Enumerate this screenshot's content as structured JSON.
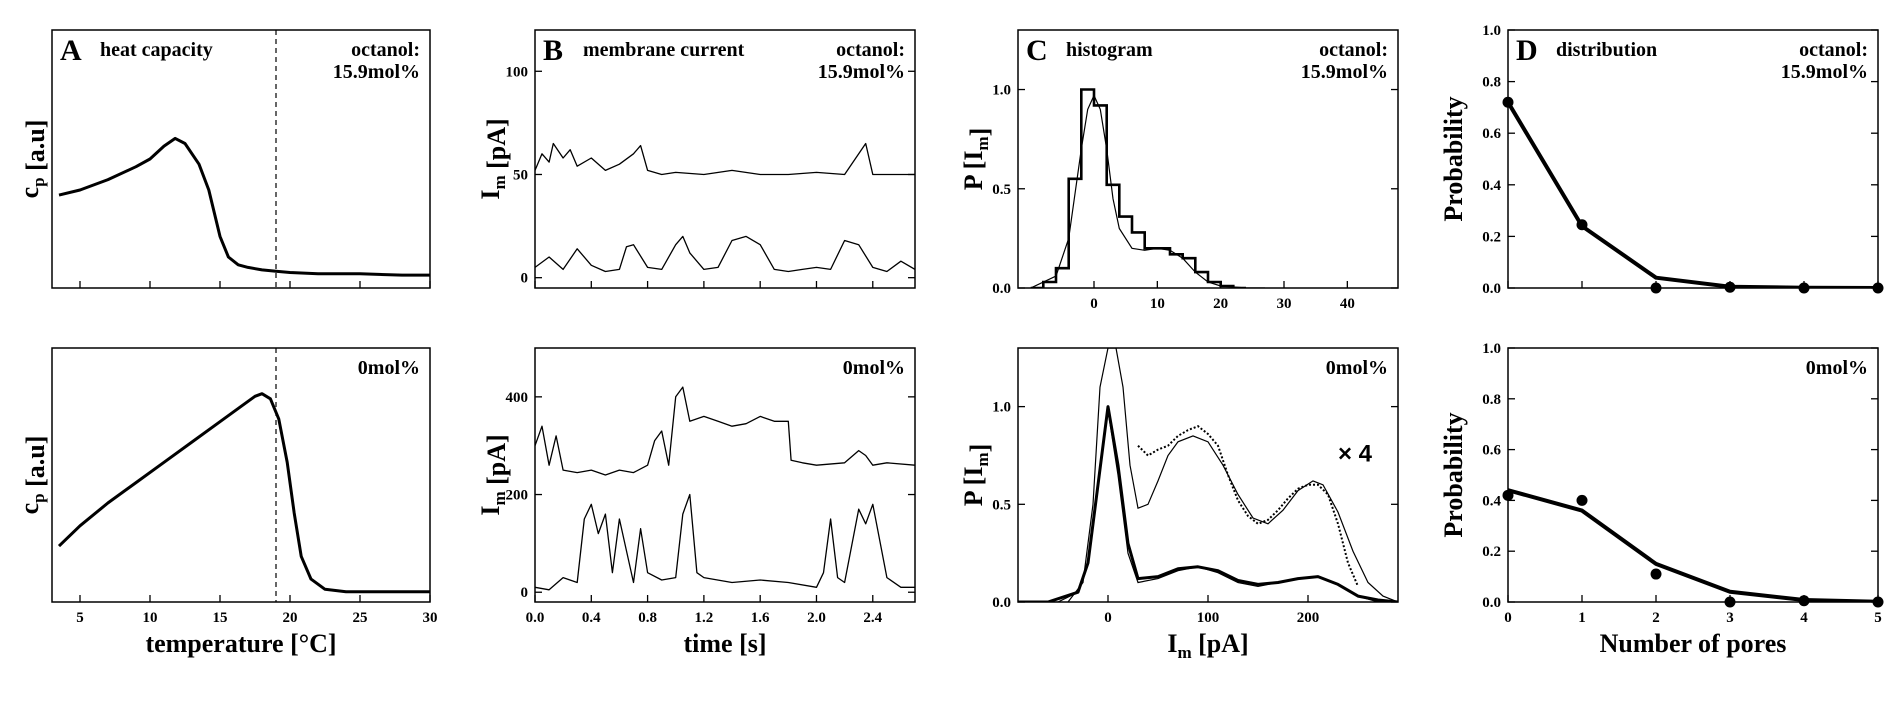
{
  "chart_data": [
    {
      "id": "A_top",
      "type": "line",
      "letter": "A",
      "title": "heat capacity",
      "annotation": [
        "octanol:",
        "15.9mol%"
      ],
      "ylabel": "c",
      "ylabel_sub": "p",
      "ylabel_rest": " [a.u]",
      "xlabel": "",
      "xlim": [
        3,
        30
      ],
      "ylim": [
        0,
        1
      ],
      "dashed_x": 19,
      "xticks": [
        5,
        10,
        15,
        20,
        25,
        30
      ],
      "show_xtick_labels": false,
      "series": [
        {
          "name": "cp",
          "x": [
            3.5,
            5,
            7,
            9,
            10,
            11,
            11.8,
            12.5,
            13.5,
            14.2,
            15,
            15.6,
            16.3,
            17,
            18,
            19,
            20,
            22,
            25,
            28,
            30
          ],
          "y": [
            0.36,
            0.38,
            0.42,
            0.47,
            0.5,
            0.55,
            0.58,
            0.56,
            0.48,
            0.38,
            0.2,
            0.12,
            0.09,
            0.08,
            0.07,
            0.065,
            0.06,
            0.055,
            0.055,
            0.05,
            0.05
          ]
        }
      ]
    },
    {
      "id": "A_bottom",
      "type": "line",
      "letter": "",
      "title": "",
      "annotation": [
        "0mol%"
      ],
      "ylabel": "c",
      "ylabel_sub": "p",
      "ylabel_rest": " [a.u]",
      "xlabel": "temperature [°C]",
      "xlim": [
        3,
        30
      ],
      "ylim": [
        0,
        1
      ],
      "dashed_x": 19,
      "xticks": [
        5,
        10,
        15,
        20,
        25,
        30
      ],
      "show_xtick_labels": true,
      "series": [
        {
          "name": "cp",
          "x": [
            3.5,
            5,
            7,
            9,
            11,
            13,
            15,
            16.5,
            17.5,
            18,
            18.6,
            19.2,
            19.8,
            20.3,
            20.8,
            21.5,
            22.5,
            24,
            26,
            28,
            30
          ],
          "y": [
            0.22,
            0.3,
            0.39,
            0.47,
            0.55,
            0.63,
            0.71,
            0.77,
            0.81,
            0.82,
            0.8,
            0.72,
            0.55,
            0.35,
            0.18,
            0.09,
            0.05,
            0.04,
            0.04,
            0.04,
            0.04
          ]
        }
      ]
    },
    {
      "id": "B_top",
      "type": "line",
      "letter": "B",
      "title": "membrane current",
      "annotation": [
        "octanol:",
        "15.9mol%"
      ],
      "ylabel": "I",
      "ylabel_sub": "m",
      "ylabel_rest": " [pA]",
      "xlabel": "",
      "xlim": [
        0,
        2.7
      ],
      "ylim": [
        -5,
        120
      ],
      "yticks": [
        0,
        50,
        100
      ],
      "xticks": [
        0.0,
        0.4,
        0.8,
        1.2,
        1.6,
        2.0,
        2.4
      ],
      "show_xtick_labels": false,
      "series": [
        {
          "name": "trace_high",
          "x": [
            0,
            0.05,
            0.1,
            0.13,
            0.2,
            0.25,
            0.3,
            0.4,
            0.5,
            0.6,
            0.7,
            0.75,
            0.8,
            0.9,
            1.0,
            1.2,
            1.4,
            1.6,
            1.8,
            2.0,
            2.2,
            2.35,
            2.4,
            2.5,
            2.7
          ],
          "y": [
            52,
            60,
            56,
            65,
            58,
            62,
            54,
            58,
            52,
            55,
            60,
            64,
            52,
            50,
            51,
            50,
            52,
            50,
            50,
            51,
            50,
            65,
            50,
            50,
            50
          ]
        },
        {
          "name": "trace_low",
          "x": [
            0,
            0.1,
            0.2,
            0.3,
            0.4,
            0.5,
            0.6,
            0.65,
            0.7,
            0.8,
            0.9,
            1.0,
            1.05,
            1.1,
            1.2,
            1.3,
            1.4,
            1.5,
            1.6,
            1.7,
            1.8,
            1.9,
            2.0,
            2.1,
            2.2,
            2.3,
            2.4,
            2.5,
            2.6,
            2.7
          ],
          "y": [
            5,
            10,
            4,
            14,
            6,
            3,
            4,
            15,
            16,
            5,
            4,
            16,
            20,
            12,
            4,
            5,
            18,
            20,
            16,
            4,
            3,
            4,
            5,
            4,
            18,
            16,
            5,
            3,
            8,
            4
          ]
        }
      ]
    },
    {
      "id": "B_bottom",
      "type": "line",
      "letter": "",
      "title": "",
      "annotation": [
        "0mol%"
      ],
      "ylabel": "I",
      "ylabel_sub": "m",
      "ylabel_rest": " [pA]",
      "xlabel": "time [s]",
      "xlim": [
        0,
        2.7
      ],
      "ylim": [
        -20,
        500
      ],
      "yticks": [
        0,
        200,
        400
      ],
      "xticks": [
        0.0,
        0.4,
        0.8,
        1.2,
        1.6,
        2.0,
        2.4
      ],
      "show_xtick_labels": true,
      "series": [
        {
          "name": "trace_high",
          "x": [
            0,
            0.05,
            0.1,
            0.15,
            0.2,
            0.3,
            0.4,
            0.5,
            0.6,
            0.7,
            0.8,
            0.85,
            0.9,
            0.95,
            1.0,
            1.05,
            1.1,
            1.2,
            1.3,
            1.4,
            1.5,
            1.6,
            1.7,
            1.8,
            1.82,
            1.9,
            2.0,
            2.2,
            2.3,
            2.35,
            2.4,
            2.5,
            2.7
          ],
          "y": [
            300,
            340,
            260,
            320,
            250,
            245,
            250,
            240,
            250,
            245,
            260,
            310,
            330,
            260,
            400,
            420,
            350,
            360,
            350,
            340,
            345,
            360,
            350,
            350,
            270,
            265,
            260,
            265,
            290,
            280,
            260,
            265,
            260
          ]
        },
        {
          "name": "trace_low",
          "x": [
            0,
            0.1,
            0.2,
            0.3,
            0.35,
            0.4,
            0.45,
            0.5,
            0.55,
            0.6,
            0.7,
            0.75,
            0.8,
            0.9,
            1.0,
            1.05,
            1.1,
            1.15,
            1.2,
            1.4,
            1.6,
            1.8,
            2.0,
            2.05,
            2.1,
            2.15,
            2.2,
            2.3,
            2.35,
            2.4,
            2.5,
            2.6,
            2.7
          ],
          "y": [
            10,
            5,
            30,
            20,
            150,
            180,
            120,
            160,
            40,
            150,
            20,
            130,
            40,
            25,
            30,
            160,
            200,
            40,
            30,
            20,
            25,
            20,
            10,
            40,
            150,
            30,
            20,
            170,
            140,
            180,
            30,
            10,
            10
          ]
        }
      ]
    },
    {
      "id": "C_top",
      "type": "histogram",
      "letter": "C",
      "title": "histogram",
      "annotation": [
        "octanol:",
        "15.9mol%"
      ],
      "ylabel": "P",
      "ylabel_rest": " [I",
      "ylabel_sub": "m",
      "ylabel_end": "]",
      "xlabel": "",
      "xlim": [
        -12,
        48
      ],
      "ylim": [
        0,
        1.3
      ],
      "yticks": [
        0.0,
        0.5,
        1.0
      ],
      "xticks": [
        0,
        10,
        20,
        30,
        40
      ],
      "show_xtick_labels": true,
      "bins": {
        "left": [
          -10,
          -8,
          -6,
          -4,
          -2,
          0,
          2,
          4,
          6,
          8,
          10,
          12,
          14,
          16,
          18,
          20,
          22
        ],
        "width": 2,
        "values": [
          0.0,
          0.03,
          0.1,
          0.55,
          1.0,
          0.92,
          0.52,
          0.36,
          0.28,
          0.2,
          0.2,
          0.17,
          0.15,
          0.08,
          0.03,
          0.01,
          0.0
        ]
      },
      "fit": {
        "x": [
          -10,
          -6,
          -4,
          -2,
          -1,
          0,
          1,
          2,
          3,
          4,
          6,
          8,
          10,
          12,
          14,
          16,
          18,
          20,
          24,
          27
        ],
        "y": [
          0.0,
          0.06,
          0.25,
          0.7,
          0.9,
          0.97,
          0.9,
          0.7,
          0.45,
          0.3,
          0.2,
          0.19,
          0.2,
          0.19,
          0.15,
          0.08,
          0.03,
          0.01,
          0.0,
          0.0
        ]
      }
    },
    {
      "id": "C_bottom",
      "type": "histogram",
      "letter": "",
      "title": "",
      "annotation": [
        "0mol%"
      ],
      "multiplier": "× 4",
      "ylabel": "P",
      "ylabel_rest": " [I",
      "ylabel_sub": "m",
      "ylabel_end": "]",
      "xlabel": "I",
      "xlabel_sub": "m",
      "xlabel_end": " [pA]",
      "xlim": [
        -90,
        290
      ],
      "ylim": [
        0,
        1.3
      ],
      "yticks": [
        0.0,
        0.5,
        1.0
      ],
      "xticks": [
        0,
        100,
        200
      ],
      "show_xtick_labels": true,
      "series": [
        {
          "name": "data",
          "x": [
            -90,
            -60,
            -30,
            -20,
            -10,
            0,
            10,
            20,
            30,
            50,
            70,
            90,
            110,
            130,
            150,
            170,
            190,
            210,
            230,
            250,
            270,
            290
          ],
          "y": [
            0.0,
            0.0,
            0.05,
            0.2,
            0.6,
            1.0,
            0.7,
            0.3,
            0.12,
            0.13,
            0.17,
            0.18,
            0.16,
            0.11,
            0.09,
            0.1,
            0.12,
            0.13,
            0.09,
            0.03,
            0.01,
            0.0
          ]
        },
        {
          "name": "data_x4",
          "x": [
            30,
            40,
            50,
            60,
            70,
            80,
            90,
            100,
            110,
            120,
            130,
            140,
            150,
            160,
            170,
            180,
            190,
            200,
            210,
            220,
            230,
            240,
            250
          ],
          "y": [
            0.8,
            0.75,
            0.78,
            0.8,
            0.85,
            0.88,
            0.9,
            0.86,
            0.8,
            0.65,
            0.52,
            0.44,
            0.4,
            0.42,
            0.47,
            0.53,
            0.58,
            0.6,
            0.6,
            0.55,
            0.4,
            0.2,
            0.08
          ]
        }
      ],
      "fits": [
        {
          "name": "fit",
          "x": [
            -90,
            -50,
            -30,
            -20,
            -10,
            0,
            10,
            20,
            30,
            50,
            70,
            90,
            110,
            130,
            150,
            170,
            190,
            210,
            230,
            250,
            270,
            290
          ],
          "y": [
            0.0,
            0.0,
            0.05,
            0.2,
            0.6,
            0.98,
            0.65,
            0.25,
            0.1,
            0.12,
            0.16,
            0.18,
            0.15,
            0.1,
            0.08,
            0.1,
            0.12,
            0.13,
            0.09,
            0.03,
            0.0,
            0.0
          ]
        },
        {
          "name": "fit_x4",
          "x": [
            -40,
            -25,
            -15,
            -8,
            0,
            8,
            15,
            22,
            30,
            40,
            50,
            60,
            70,
            85,
            100,
            115,
            130,
            145,
            160,
            175,
            190,
            205,
            215,
            230,
            245,
            260,
            275,
            290
          ],
          "y": [
            0.0,
            0.1,
            0.5,
            1.1,
            1.3,
            1.3,
            1.1,
            0.7,
            0.48,
            0.5,
            0.62,
            0.75,
            0.82,
            0.85,
            0.82,
            0.7,
            0.55,
            0.43,
            0.4,
            0.47,
            0.57,
            0.62,
            0.6,
            0.46,
            0.26,
            0.1,
            0.03,
            0.0
          ]
        }
      ]
    },
    {
      "id": "D_top",
      "type": "line",
      "letter": "D",
      "title": "distribution",
      "annotation": [
        "octanol:",
        "15.9mol%"
      ],
      "ylabel": "Probability",
      "xlabel": "",
      "xlim": [
        0,
        5
      ],
      "ylim": [
        0,
        1
      ],
      "yticks": [
        0.0,
        0.2,
        0.4,
        0.6,
        0.8,
        1.0
      ],
      "xticks": [
        0,
        1,
        2,
        3,
        4,
        5
      ],
      "show_xtick_labels": false,
      "series": [
        {
          "name": "points",
          "x": [
            0,
            1,
            2,
            3,
            4,
            5
          ],
          "y": [
            0.72,
            0.245,
            0.0,
            0.003,
            0.0,
            0.0
          ]
        },
        {
          "name": "fit",
          "x": [
            0,
            1,
            2,
            3,
            4,
            5
          ],
          "y": [
            0.72,
            0.24,
            0.04,
            0.005,
            0.001,
            0.0
          ]
        }
      ]
    },
    {
      "id": "D_bottom",
      "type": "line",
      "letter": "",
      "title": "",
      "annotation": [
        "0mol%"
      ],
      "ylabel": "Probability",
      "xlabel": "Number of pores",
      "xlim": [
        0,
        5
      ],
      "ylim": [
        0,
        1
      ],
      "yticks": [
        0.0,
        0.2,
        0.4,
        0.6,
        0.8,
        1.0
      ],
      "xticks": [
        0,
        1,
        2,
        3,
        4,
        5
      ],
      "show_xtick_labels": true,
      "series": [
        {
          "name": "points",
          "x": [
            0,
            1,
            2,
            3,
            4,
            5
          ],
          "y": [
            0.42,
            0.4,
            0.11,
            0.0,
            0.005,
            0.0
          ]
        },
        {
          "name": "fit",
          "x": [
            0,
            1,
            2,
            3,
            4,
            5
          ],
          "y": [
            0.44,
            0.36,
            0.15,
            0.04,
            0.008,
            0.001
          ]
        }
      ]
    }
  ]
}
